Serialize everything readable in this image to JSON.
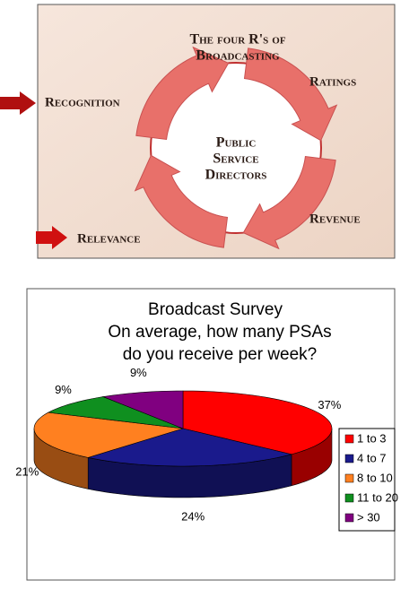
{
  "diagram": {
    "title_lines": [
      "The four R's of",
      "Broadcasting"
    ],
    "center_lines": [
      "Public",
      "Service",
      "Directors"
    ],
    "labels": [
      "Ratings",
      "Recognition",
      "Revenue",
      "Relevance"
    ]
  },
  "chart_data": {
    "type": "pie3d",
    "title": "Broadcast Survey",
    "subtitle": "On average, how many PSAs do you receive per week?",
    "categories": [
      "1 to 3",
      "4 to 7",
      "8 to 10",
      "11 to 20",
      "> 30"
    ],
    "values": [
      37,
      24,
      21,
      9,
      9
    ],
    "value_labels": [
      "37%",
      "24%",
      "21%",
      "9%",
      "9%"
    ],
    "colors": [
      "#ff0000",
      "#1a1a8c",
      "#ff8020",
      "#0f8f1f",
      "#800080"
    ],
    "legend": "right"
  }
}
